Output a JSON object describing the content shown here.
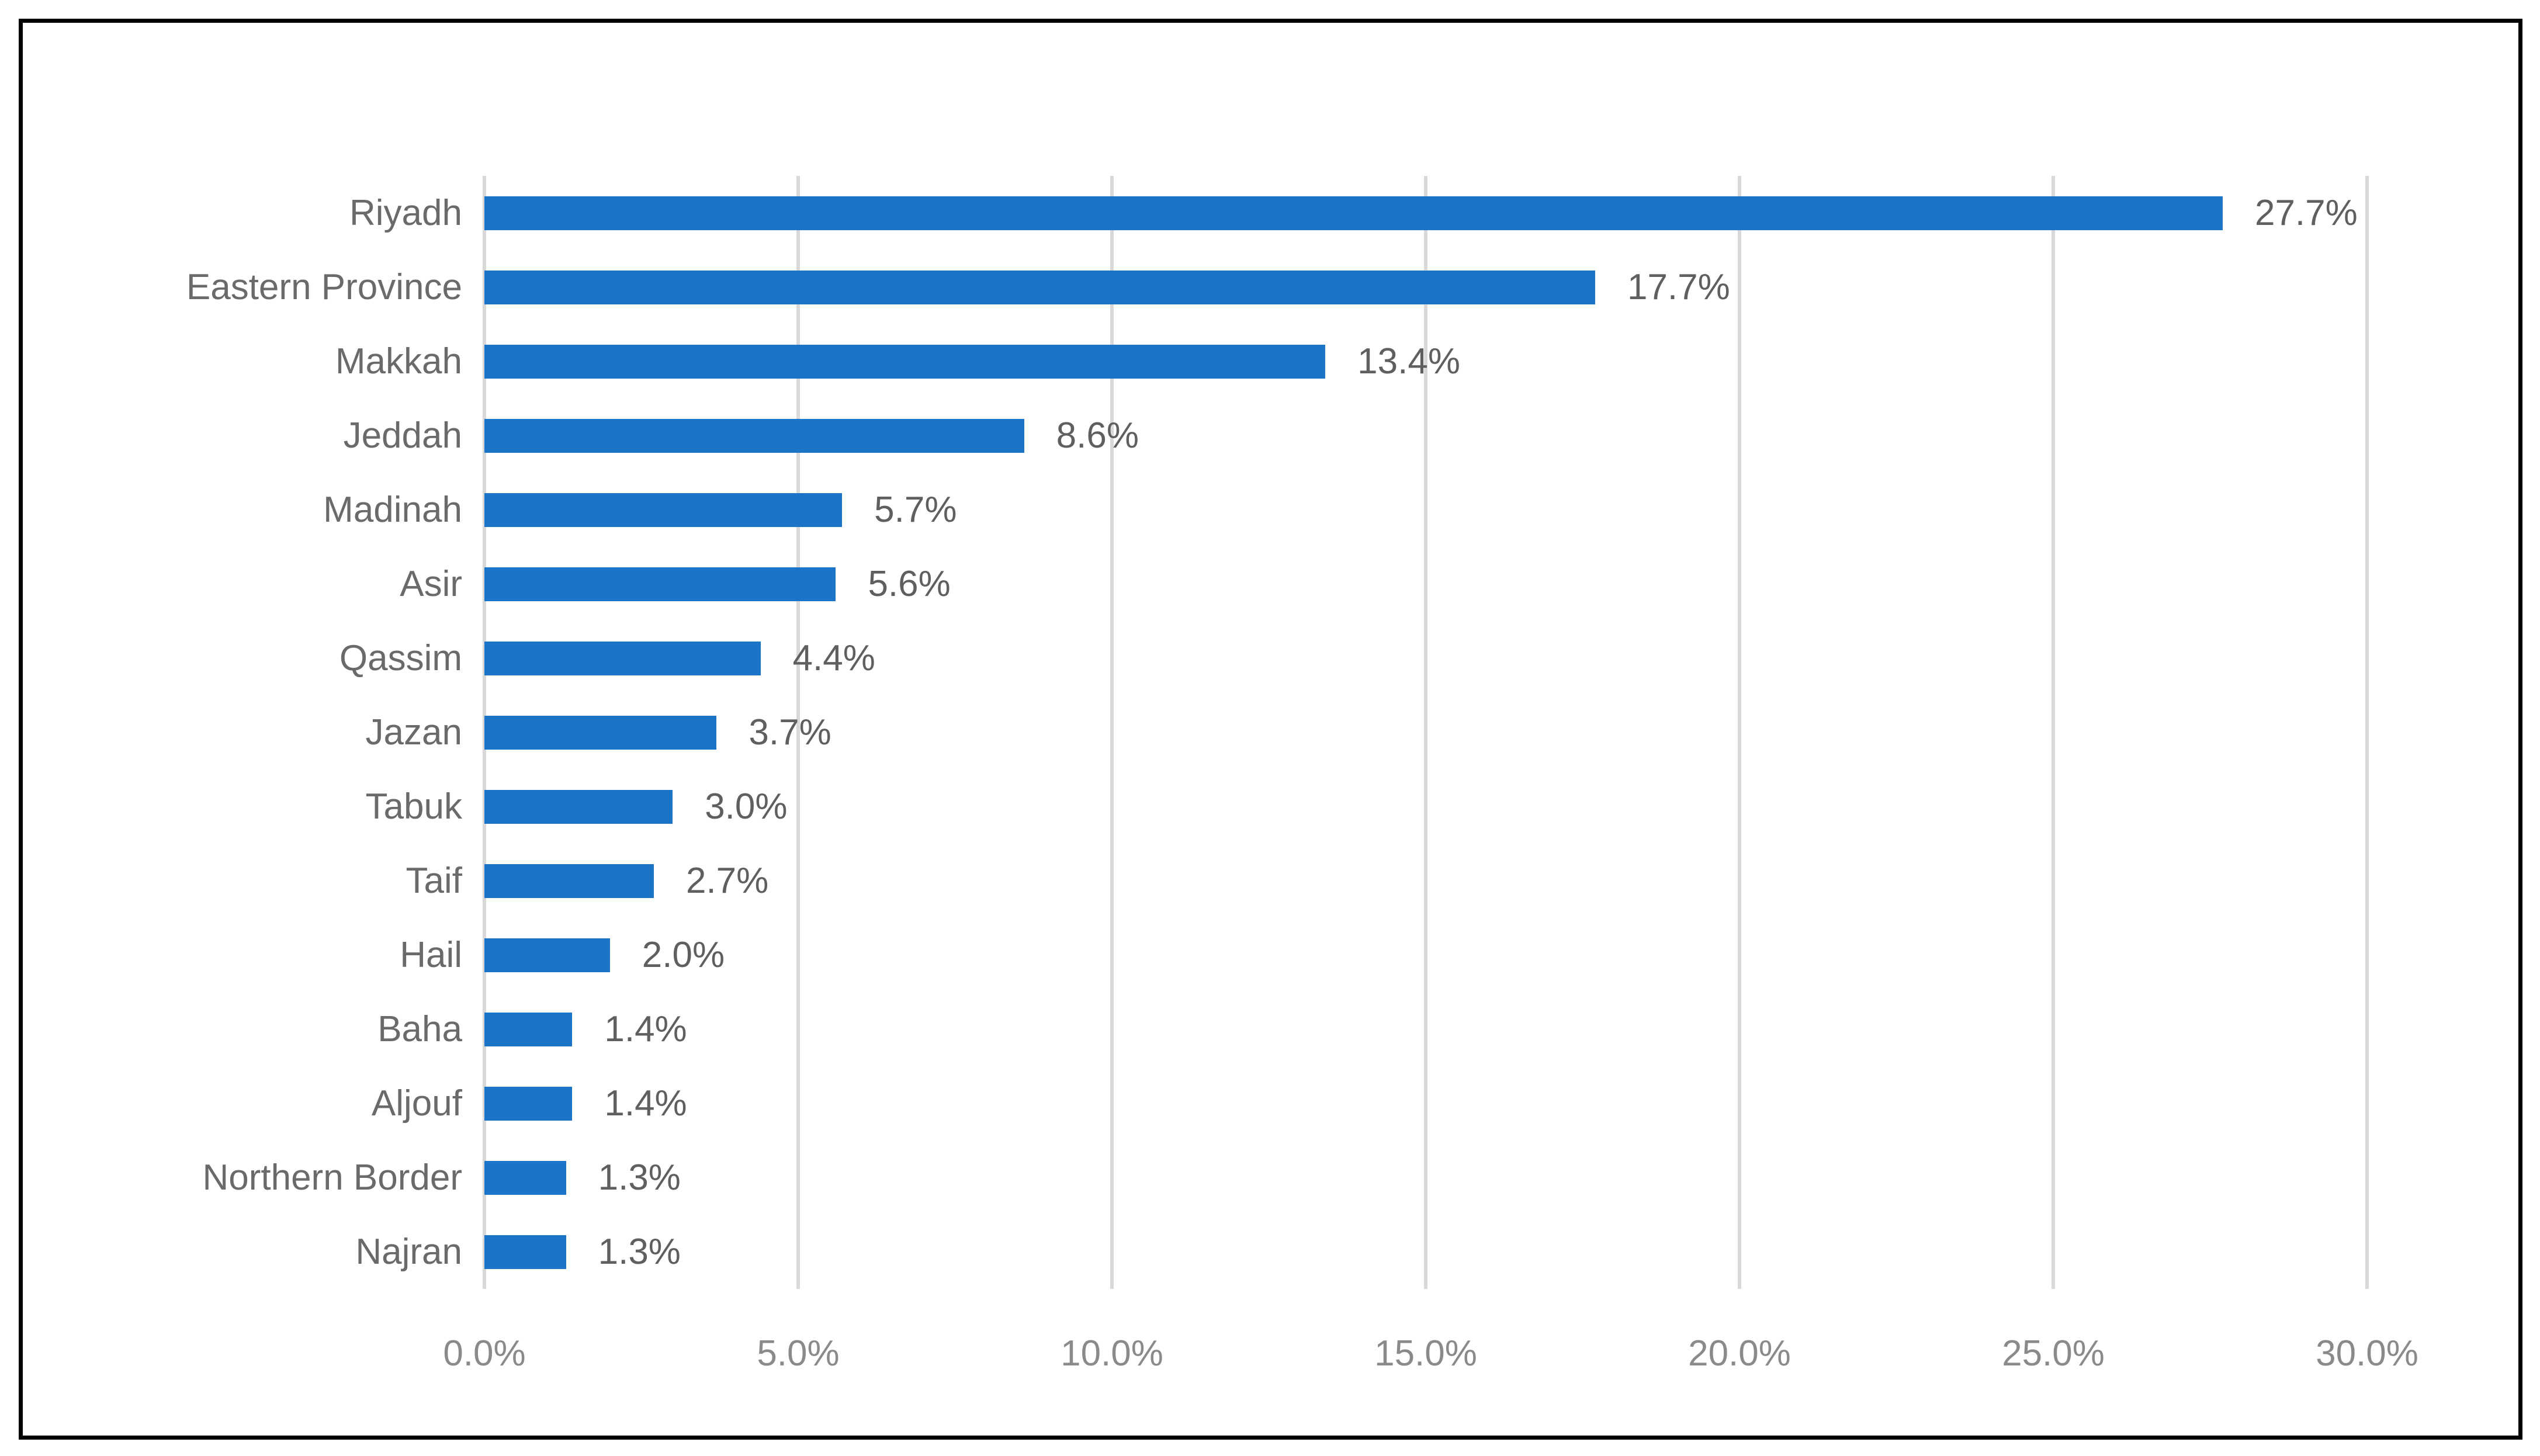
{
  "chart_data": {
    "type": "bar",
    "orientation": "horizontal",
    "title": "",
    "xlabel": "",
    "ylabel": "",
    "categories": [
      "Riyadh",
      "Eastern Province",
      "Makkah",
      "Jeddah",
      "Madinah",
      "Asir",
      "Qassim",
      "Jazan",
      "Tabuk",
      "Taif",
      "Hail",
      "Baha",
      "Aljouf",
      "Northern Border",
      "Najran"
    ],
    "values": [
      27.7,
      17.7,
      13.4,
      8.6,
      5.7,
      5.6,
      4.4,
      3.7,
      3.0,
      2.7,
      2.0,
      1.4,
      1.4,
      1.3,
      1.3
    ],
    "data_labels": [
      "27.7%",
      "17.7%",
      "13.4%",
      "8.6%",
      "5.7%",
      "5.6%",
      "4.4%",
      "3.7%",
      "3.0%",
      "2.7%",
      "2.0%",
      "1.4%",
      "1.4%",
      "1.3%",
      "1.3%"
    ],
    "x_ticks": [
      "0.0%",
      "5.0%",
      "10.0%",
      "15.0%",
      "20.0%",
      "25.0%",
      "30.0%"
    ],
    "x_tick_values": [
      0,
      5,
      10,
      15,
      20,
      25,
      30
    ],
    "xlim": [
      0,
      30
    ],
    "grid": "vertical-gridlines-on",
    "legend": "none",
    "colors": {
      "bar": "#1B74C8",
      "category_label": "#6A6A6A",
      "value_label": "#5F5F5F",
      "tick_label": "#8A8A8A",
      "gridline": "#D9D9D9",
      "frame_border": "#000000",
      "background": "#FFFFFF"
    }
  }
}
